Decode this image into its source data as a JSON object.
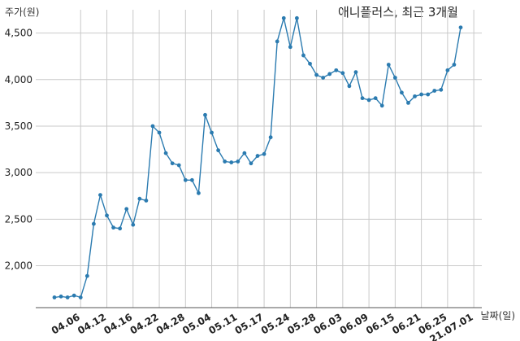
{
  "chart_data": {
    "type": "line",
    "title": "애니플러스, 최근 3개월",
    "ylabel": "주가(원)",
    "xlabel": "날짜(일)",
    "ylim": [
      1550,
      4750
    ],
    "yticks": [
      2000,
      2500,
      3000,
      3500,
      4000,
      4500
    ],
    "ytick_labels": [
      "2,000",
      "2,500",
      "3,000",
      "3,500",
      "4,000",
      "4,500"
    ],
    "xtick_labels": [
      "04.06",
      "04.12",
      "04.16",
      "04.22",
      "04.28",
      "05.04",
      "05.11",
      "05.17",
      "05.24",
      "05.28",
      "06.03",
      "06.09",
      "06.15",
      "06.21",
      "06.25",
      "21.07.01"
    ],
    "xtick_index": [
      4,
      8,
      12,
      16,
      20,
      24,
      28,
      32,
      36,
      40,
      44,
      48,
      52,
      56,
      60,
      64
    ],
    "grid": true,
    "color": "#2b7bb0",
    "series": [
      {
        "values": [
          1660,
          1670,
          1660,
          1680,
          1660,
          1890,
          2450,
          2760,
          2540,
          2410,
          2400,
          2610,
          2440,
          2720,
          2700,
          3500,
          3430,
          3210,
          3100,
          3080,
          2920,
          2920,
          2780,
          3620,
          3430,
          3240,
          3120,
          3110,
          3120,
          3210,
          3100,
          3180,
          3200,
          3380,
          4410,
          4660,
          4350,
          4660,
          4260,
          4170,
          4050,
          4020,
          4060,
          4100,
          4070,
          3930,
          4080,
          3800,
          3780,
          3800,
          3720,
          4160,
          4020,
          3860,
          3750,
          3820,
          3840,
          3840,
          3880,
          3890,
          4100,
          4160,
          4560
        ]
      }
    ]
  }
}
